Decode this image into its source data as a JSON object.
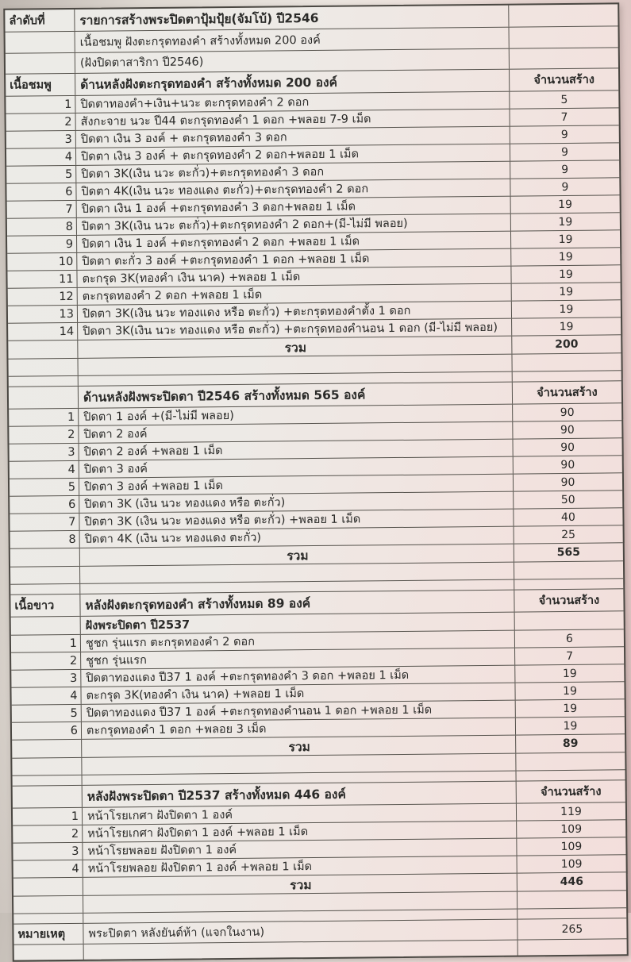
{
  "table": {
    "intro": {
      "col1": "ลำดับที่",
      "title": "รายการสร้างพระปิดตาปุ้มปุ้ย(จัมโบ้) ปี2546",
      "line2": "เนื้อชมพู ฝังตะกรุดทองคำ  สร้างทั้งหมด  200 องค์",
      "line3": "(ฝังปิดตาสาริกา ปี2546)"
    },
    "labels": {
      "count_header": "จำนวนสร้าง",
      "total": "รวม"
    },
    "sections": [
      {
        "material": "เนื้อชมพู",
        "header": "ด้านหลังฝังตะกรุดทองคำ สร้างทั้งหมด  200  องค์",
        "rows": [
          {
            "no": "1",
            "desc": "ปิดตาทองคำ+เงิน+นวะ  ตะกรุดทองคำ 2 ดอก",
            "qty": "5"
          },
          {
            "no": "2",
            "desc": "สังกะจาย นวะ ปี44 ตะกรุดทองคำ 1 ดอก +พลอย 7-9 เม็ด",
            "qty": "7"
          },
          {
            "no": "3",
            "desc": "ปิดตา เงิน 3 องค์ + ตะกรุดทองคำ 3 ดอก",
            "qty": "9"
          },
          {
            "no": "4",
            "desc": "ปิดตา เงิน 3 องค์ + ตะกรุดทองคำ 2 ดอก+พลอย 1 เม็ด",
            "qty": "9"
          },
          {
            "no": "5",
            "desc": "ปิดตา 3K(เงิน นวะ ตะกั่ว)+ตะกรุดทองคำ 3 ดอก",
            "qty": "9"
          },
          {
            "no": "6",
            "desc": "ปิดตา 4K(เงิน นวะ  ทองแดง ตะกั่ว)+ตะกรุดทองคำ 2 ดอก",
            "qty": "9"
          },
          {
            "no": "7",
            "desc": "ปิดตา เงิน 1 องค์ +ตะกรุดทองคำ 3 ดอก+พลอย 1 เม็ด",
            "qty": "19"
          },
          {
            "no": "8",
            "desc": "ปิดตา 3K(เงิน นวะ ตะกั่ว)+ตะกรุดทองคำ 2 ดอก+(มี-ไม่มี พลอย)",
            "qty": "19"
          },
          {
            "no": "9",
            "desc": "ปิดตา เงิน 1 องค์ +ตะกรุดทองคำ 2 ดอก +พลอย 1 เม็ด",
            "qty": "19"
          },
          {
            "no": "10",
            "desc": "ปิดตา ตะกั่ว 3 องค์ +ตะกรุดทองคำ 1 ดอก +พลอย 1 เม็ด",
            "qty": "19"
          },
          {
            "no": "11",
            "desc": "ตะกรุด 3K(ทองคำ เงิน นาค) +พลอย 1 เม็ด",
            "qty": "19"
          },
          {
            "no": "12",
            "desc": "ตะกรุดทองคำ 2 ดอก +พลอย 1 เม็ด",
            "qty": "19"
          },
          {
            "no": "13",
            "desc": "ปิดตา 3K(เงิน นวะ ทองแดง หรือ ตะกั่ว) +ตะกรุดทองคำตั้ง 1 ดอก",
            "qty": "19"
          },
          {
            "no": "14",
            "desc": "ปิดตา 3K(เงิน นวะ ทองแดง หรือ ตะกั่ว) +ตะกรุดทองคำนอน 1 ดอก (มี-ไม่มี พลอย)",
            "qty": "19"
          }
        ],
        "total": "200"
      },
      {
        "material": "",
        "header": "ด้านหลังฝังพระปิดตา ปี2546 สร้างทั้งหมด 565 องค์",
        "rows": [
          {
            "no": "1",
            "desc": "ปิดตา 1 องค์ +(มี-ไม่มี พลอย)",
            "qty": "90"
          },
          {
            "no": "2",
            "desc": "ปิดตา 2 องค์",
            "qty": "90"
          },
          {
            "no": "3",
            "desc": "ปิดตา 2 องค์ +พลอย 1 เม็ด",
            "qty": "90"
          },
          {
            "no": "4",
            "desc": "ปิดตา 3 องค์",
            "qty": "90"
          },
          {
            "no": "5",
            "desc": "ปิดตา 3 องค์ +พลอย 1 เม็ด",
            "qty": "90"
          },
          {
            "no": "6",
            "desc": "ปิดตา 3K (เงิน นวะ ทองแดง หรือ ตะกั่ว)",
            "qty": "50"
          },
          {
            "no": "7",
            "desc": "ปิดตา 3K (เงิน นวะ ทองแดง หรือ ตะกั่ว) +พลอย 1 เม็ด",
            "qty": "40"
          },
          {
            "no": "8",
            "desc": "ปิดตา 4K (เงิน นวะ ทองแดง ตะกั่ว)",
            "qty": "25"
          }
        ],
        "total": "565"
      },
      {
        "material": "เนื้อขาว",
        "header": "หลังฝังตะกรุดทองคำ สร้างทั้งหมด 89 องค์",
        "subheader": "ฝังพระปิดตา ปี2537",
        "rows": [
          {
            "no": "1",
            "desc": "ชูชก รุ่นแรก ตะกรุดทองคำ 2 ดอก",
            "qty": "6"
          },
          {
            "no": "2",
            "desc": "ชูชก รุ่นแรก",
            "qty": "7"
          },
          {
            "no": "3",
            "desc": "ปิดตาทองแดง ปี37 1 องค์ +ตะกรุดทองคำ 3 ดอก +พลอย 1 เม็ด",
            "qty": "19"
          },
          {
            "no": "4",
            "desc": "ตะกรุด 3K(ทองคำ เงิน นาค) +พลอย 1 เม็ด",
            "qty": "19"
          },
          {
            "no": "5",
            "desc": "ปิดตาทองแดง ปี37 1 องค์ +ตะกรุดทองคำนอน 1 ดอก +พลอย 1 เม็ด",
            "qty": "19"
          },
          {
            "no": "6",
            "desc": "ตะกรุดทองคำ 1 ดอก +พลอย 3 เม็ด",
            "qty": "19"
          }
        ],
        "total": "89"
      },
      {
        "material": "",
        "header": "หลังฝังพระปิดตา ปี2537  สร้างทั้งหมด 446 องค์",
        "rows": [
          {
            "no": "1",
            "desc": "หน้าโรยเกศา ฝังปิดตา 1 องค์",
            "qty": "119"
          },
          {
            "no": "2",
            "desc": "หน้าโรยเกศา ฝังปิดตา 1 องค์ +พลอย 1 เม็ด",
            "qty": "109"
          },
          {
            "no": "3",
            "desc": "หน้าโรยพลอย ฝังปิดตา 1 องค์",
            "qty": "109"
          },
          {
            "no": "4",
            "desc": "หน้าโรยพลอย ฝังปิดตา 1 องค์ +พลอย 1 เม็ด",
            "qty": "109"
          }
        ],
        "total": "446"
      }
    ],
    "note": {
      "label": "หมายเหตุ",
      "desc": "พระปิดตา หลังยันต์ห้า (แจกในงาน)",
      "qty": "265"
    }
  }
}
